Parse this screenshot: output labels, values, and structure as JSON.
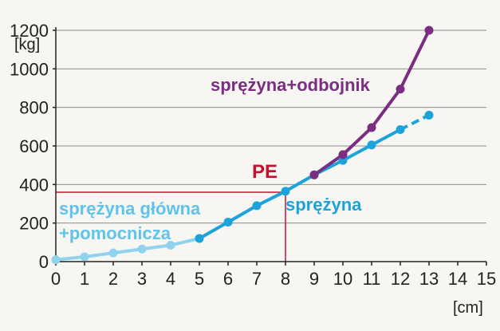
{
  "chart_data": {
    "type": "line",
    "x_unit": "[cm]",
    "y_unit": "[kg]",
    "xlim": [
      0,
      15
    ],
    "ylim": [
      0,
      1200
    ],
    "x_ticks": [
      0,
      1,
      2,
      3,
      4,
      5,
      6,
      7,
      8,
      9,
      10,
      11,
      12,
      13,
      14,
      15
    ],
    "y_ticks": [
      0,
      200,
      400,
      600,
      800,
      1000,
      1200
    ],
    "grid": true,
    "colors": {
      "main_aux": "#8fd3ee",
      "spring": "#1ba3da",
      "spring_buffer": "#7b2d82",
      "pe": "#c8102e"
    },
    "series": [
      {
        "name": "sprężyna główna + pomocnicza",
        "label_line1": "sprężyna główna",
        "label_line2": "+pomocnicza",
        "x": [
          0,
          1,
          2,
          3,
          4,
          5
        ],
        "y": [
          10,
          25,
          45,
          65,
          85,
          120
        ]
      },
      {
        "name": "sprężyna",
        "label": "sprężyna",
        "x": [
          5,
          6,
          7,
          8,
          9,
          10,
          11,
          12,
          13
        ],
        "y": [
          120,
          205,
          290,
          365,
          450,
          525,
          605,
          685,
          760
        ],
        "dashed_from_x": 12
      },
      {
        "name": "sprężyna + odbojnik",
        "label": "sprężyna+odbojnik",
        "x": [
          9,
          10,
          11,
          12,
          13
        ],
        "y": [
          450,
          555,
          695,
          895,
          1200
        ]
      }
    ],
    "annotations": [
      {
        "text": "PE",
        "x": 8,
        "y": 360
      }
    ]
  }
}
